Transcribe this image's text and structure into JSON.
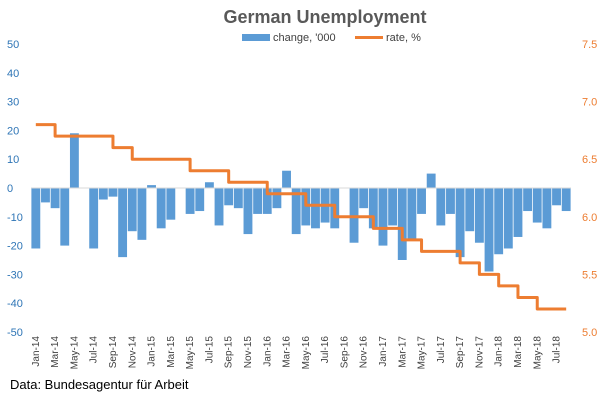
{
  "source": "Data: Bundesagentur für Arbeit",
  "colors": {
    "bar": "#5B9BD5",
    "line": "#ED7D31",
    "axis_left": "#2E75B6",
    "axis_right": "#ED7D31"
  },
  "chart_data": {
    "type": "bar+line",
    "title": "German Unemployment",
    "legend_position": "top",
    "grid": false,
    "x": [
      "Jan-14",
      "Feb-14",
      "Mar-14",
      "Apr-14",
      "May-14",
      "Jun-14",
      "Jul-14",
      "Aug-14",
      "Sep-14",
      "Oct-14",
      "Nov-14",
      "Dec-14",
      "Jan-15",
      "Feb-15",
      "Mar-15",
      "Apr-15",
      "May-15",
      "Jun-15",
      "Jul-15",
      "Aug-15",
      "Sep-15",
      "Oct-15",
      "Nov-15",
      "Dec-15",
      "Jan-16",
      "Feb-16",
      "Mar-16",
      "Apr-16",
      "May-16",
      "Jun-16",
      "Jul-16",
      "Aug-16",
      "Sep-16",
      "Oct-16",
      "Nov-16",
      "Dec-16",
      "Jan-17",
      "Feb-17",
      "Mar-17",
      "Apr-17",
      "May-17",
      "Jun-17",
      "Jul-17",
      "Aug-17",
      "Sep-17",
      "Oct-17",
      "Nov-17",
      "Dec-17",
      "Jan-18",
      "Feb-18",
      "Mar-18",
      "Apr-18",
      "May-18",
      "Jun-18",
      "Jul-18",
      "Aug-18"
    ],
    "x_tick_labels": [
      "Jan-14",
      "Mar-14",
      "May-14",
      "Jul-14",
      "Sep-14",
      "Nov-14",
      "Jan-15",
      "Mar-15",
      "May-15",
      "Jul-15",
      "Sep-15",
      "Nov-15",
      "Jan-16",
      "Mar-16",
      "May-16",
      "Jul-16",
      "Sep-16",
      "Nov-16",
      "Jan-17",
      "Mar-17",
      "May-17",
      "Jul-17",
      "Sep-17",
      "Nov-17",
      "Jan-18",
      "Mar-18",
      "May-18",
      "Jul-18"
    ],
    "series": [
      {
        "name": "change, '000",
        "type": "bar",
        "axis": "left",
        "values": [
          -21,
          -5,
          -7,
          -20,
          19,
          0,
          -21,
          -4,
          -3,
          -24,
          -15,
          -18,
          1,
          -14,
          -11,
          0,
          -9,
          -8,
          2,
          -13,
          -6,
          -7,
          -16,
          -9,
          -9,
          -7,
          6,
          -16,
          -13,
          -14,
          -12,
          -14,
          0,
          -19,
          -7,
          -14,
          -20,
          -13,
          -25,
          -18,
          -9,
          5,
          -13,
          -9,
          -24,
          -15,
          -19,
          -29,
          -23,
          -21,
          -17,
          -8,
          -12,
          -14,
          -6,
          -8
        ]
      },
      {
        "name": "rate, %",
        "type": "line",
        "axis": "right",
        "values": [
          6.8,
          6.8,
          6.7,
          6.7,
          6.7,
          6.7,
          6.7,
          6.7,
          6.6,
          6.6,
          6.5,
          6.5,
          6.5,
          6.5,
          6.5,
          6.5,
          6.4,
          6.4,
          6.4,
          6.4,
          6.3,
          6.3,
          6.3,
          6.3,
          6.2,
          6.2,
          6.2,
          6.2,
          6.1,
          6.1,
          6.1,
          6.0,
          6.0,
          6.0,
          6.0,
          5.9,
          5.9,
          5.9,
          5.8,
          5.8,
          5.7,
          5.7,
          5.7,
          5.7,
          5.6,
          5.6,
          5.5,
          5.5,
          5.4,
          5.4,
          5.3,
          5.3,
          5.2,
          5.2,
          5.2,
          5.2
        ]
      }
    ],
    "y_left": {
      "min": -50,
      "max": 50,
      "ticks": [
        -50,
        -40,
        -30,
        -20,
        -10,
        0,
        10,
        20,
        30,
        40,
        50
      ]
    },
    "y_right": {
      "min": 5.0,
      "max": 7.5,
      "ticks": [
        "5.0",
        "5.5",
        "6.0",
        "6.5",
        "7.0",
        "7.5"
      ]
    }
  }
}
